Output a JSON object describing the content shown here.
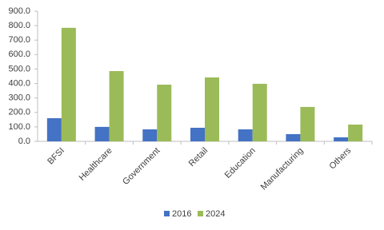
{
  "chart_data": {
    "type": "bar",
    "categories": [
      "BFSI",
      "Healthcare",
      "Government",
      "Retail",
      "Education",
      "Manufacturing",
      "Others"
    ],
    "series": [
      {
        "name": "2016",
        "color": "#4472c4",
        "values": [
          160,
          100,
          83,
          94,
          83,
          50,
          28
        ]
      },
      {
        "name": "2024",
        "color": "#9bbb59",
        "values": [
          785,
          486,
          392,
          442,
          398,
          238,
          116
        ]
      }
    ],
    "ylim": [
      0,
      900
    ],
    "yticks": [
      {
        "value": 0,
        "label": "0.0"
      },
      {
        "value": 100,
        "label": "100.0"
      },
      {
        "value": 200,
        "label": "200.0"
      },
      {
        "value": 300,
        "label": "300.0"
      },
      {
        "value": 400,
        "label": "400.0"
      },
      {
        "value": 500,
        "label": "500.0"
      },
      {
        "value": 600,
        "label": "600.0"
      },
      {
        "value": 700,
        "label": "700.0"
      },
      {
        "value": 800,
        "label": "800.0"
      },
      {
        "value": 900,
        "label": "900.0"
      }
    ],
    "grid": false,
    "legend": "bottom"
  }
}
